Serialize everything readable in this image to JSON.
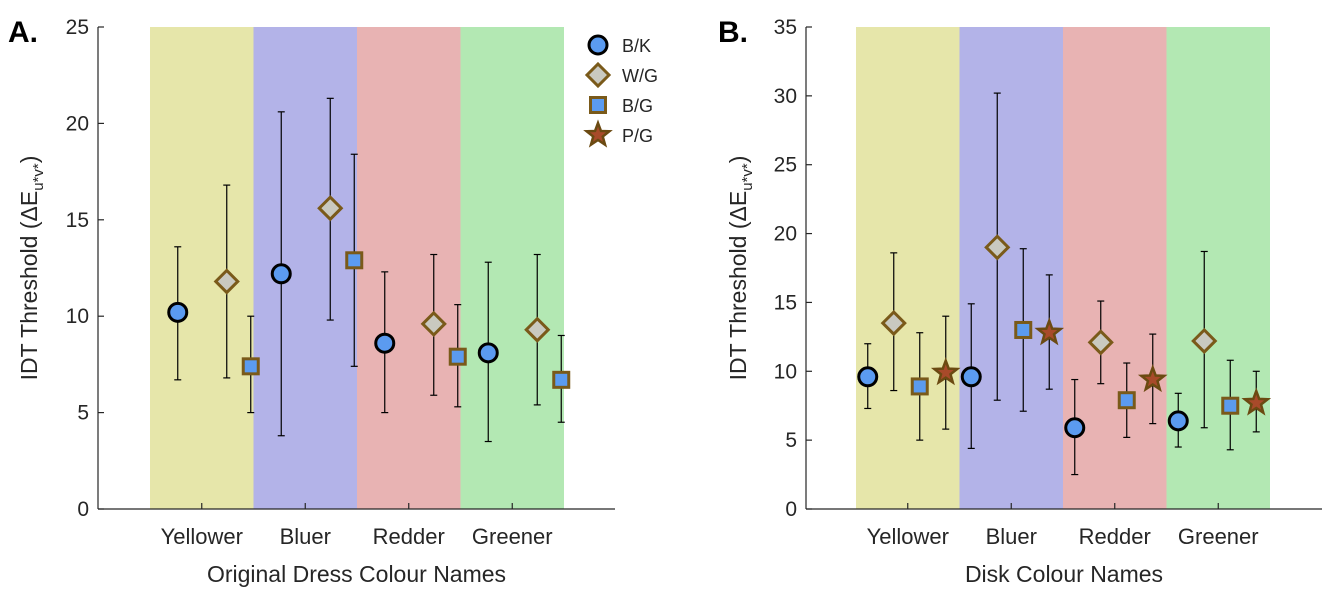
{
  "legend": [
    {
      "label": "B/K",
      "marker": "circle"
    },
    {
      "label": "W/G",
      "marker": "diamond"
    },
    {
      "label": "B/G",
      "marker": "square"
    },
    {
      "label": "P/G",
      "marker": "star"
    }
  ],
  "markers": {
    "circle": {
      "fill": "#5b9bf0",
      "stroke": "#000000"
    },
    "diamond": {
      "fill": "#c9c9c0",
      "stroke": "#7a5a1a"
    },
    "square": {
      "fill": "#5b9bf0",
      "stroke": "#7a5a1a"
    },
    "star": {
      "fill": "#a84a2a",
      "stroke": "#6b4a12"
    }
  },
  "band_colors": [
    "#e6e6aa",
    "#b3b3e8",
    "#e8b3b3",
    "#b3e8b3"
  ],
  "chart_data": [
    {
      "type": "scatter",
      "panel_label": "A.",
      "xlabel": "Original Dress Colour Names",
      "ylabel": "IDT Threshold (ΔE",
      "ylabel_sub": "u*v*",
      "ylim": [
        0,
        25
      ],
      "yticks": [
        0,
        5,
        10,
        15,
        20,
        25
      ],
      "categories": [
        "Yellower",
        "Bluer",
        "Redder",
        "Greener"
      ],
      "legend_position": "top-right",
      "series": [
        {
          "name": "B/K",
          "marker": "circle",
          "values": [
            10.2,
            12.2,
            8.6,
            8.1
          ],
          "err_low": [
            6.7,
            3.8,
            5.0,
            3.5
          ],
          "err_high": [
            13.6,
            20.6,
            12.3,
            12.8
          ]
        },
        {
          "name": "W/G",
          "marker": "diamond",
          "values": [
            11.8,
            15.6,
            9.6,
            9.3
          ],
          "err_low": [
            6.8,
            9.8,
            5.9,
            5.4
          ],
          "err_high": [
            16.8,
            21.3,
            13.2,
            13.2
          ]
        },
        {
          "name": "B/G",
          "marker": "square",
          "values": [
            7.4,
            12.9,
            7.9,
            6.7
          ],
          "err_low": [
            5.0,
            7.4,
            5.3,
            4.5
          ],
          "err_high": [
            10.0,
            18.4,
            10.6,
            9.0
          ]
        }
      ]
    },
    {
      "type": "scatter",
      "panel_label": "B.",
      "xlabel": "Disk Colour Names",
      "ylabel": "IDT Threshold (ΔE",
      "ylabel_sub": "u*v*",
      "ylim": [
        0,
        35
      ],
      "yticks": [
        0,
        5,
        10,
        15,
        20,
        25,
        30,
        35
      ],
      "categories": [
        "Yellower",
        "Bluer",
        "Redder",
        "Greener"
      ],
      "series": [
        {
          "name": "B/K",
          "marker": "circle",
          "values": [
            9.6,
            9.6,
            5.9,
            6.4
          ],
          "err_low": [
            7.3,
            4.4,
            2.5,
            4.5
          ],
          "err_high": [
            12.0,
            14.9,
            9.4,
            8.4
          ]
        },
        {
          "name": "W/G",
          "marker": "diamond",
          "values": [
            13.5,
            19.0,
            12.1,
            12.2
          ],
          "err_low": [
            8.6,
            7.9,
            9.1,
            5.9
          ],
          "err_high": [
            18.6,
            30.2,
            15.1,
            18.7
          ]
        },
        {
          "name": "B/G",
          "marker": "square",
          "values": [
            8.9,
            13.0,
            7.9,
            7.5
          ],
          "err_low": [
            5.0,
            7.1,
            5.2,
            4.3
          ],
          "err_high": [
            12.8,
            18.9,
            10.6,
            10.8
          ]
        },
        {
          "name": "P/G",
          "marker": "star",
          "values": [
            9.9,
            12.8,
            9.4,
            7.7
          ],
          "err_low": [
            5.8,
            8.7,
            6.2,
            5.6
          ],
          "err_high": [
            14.0,
            17.0,
            12.7,
            10.0
          ]
        }
      ]
    }
  ]
}
